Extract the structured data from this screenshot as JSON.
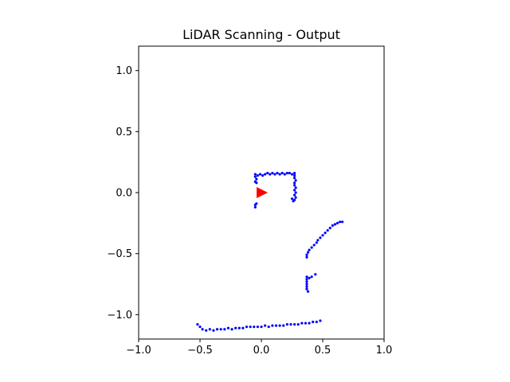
{
  "chart_data": {
    "type": "scatter",
    "title": "LiDAR Scanning - Output",
    "xlabel": "",
    "ylabel": "",
    "xlim": [
      -1.0,
      1.0
    ],
    "ylim": [
      -1.2,
      1.2
    ],
    "aspect": "equal",
    "grid": false,
    "x_ticks": [
      -1.0,
      -0.5,
      0.0,
      0.5,
      1.0
    ],
    "x_tick_labels": [
      "−1.0",
      "−0.5",
      "0.0",
      "0.5",
      "1.0"
    ],
    "y_ticks": [
      1.0,
      0.5,
      0.0,
      -0.5,
      -1.0
    ],
    "y_tick_labels": [
      "1.0",
      "0.5",
      "0.0",
      "−0.5",
      "−1.0"
    ],
    "colors": {
      "points": "#0000ff",
      "marker": "#ff0000"
    },
    "marker": {
      "x": 0.0,
      "y": 0.0,
      "shape": "triangle-right"
    },
    "series": [
      {
        "points": [
          [
            -0.05,
            0.15
          ],
          [
            -0.03,
            0.14
          ],
          [
            -0.01,
            0.15
          ],
          [
            0.01,
            0.14
          ],
          [
            0.03,
            0.15
          ],
          [
            0.05,
            0.16
          ],
          [
            0.07,
            0.15
          ],
          [
            0.09,
            0.16
          ],
          [
            0.11,
            0.15
          ],
          [
            0.13,
            0.16
          ],
          [
            0.15,
            0.15
          ],
          [
            0.17,
            0.16
          ],
          [
            0.19,
            0.15
          ],
          [
            0.21,
            0.16
          ],
          [
            0.23,
            0.16
          ],
          [
            0.25,
            0.15
          ],
          [
            0.27,
            0.16
          ],
          [
            -0.05,
            0.13
          ],
          [
            -0.04,
            0.11
          ],
          [
            -0.05,
            0.09
          ],
          [
            -0.04,
            0.08
          ],
          [
            0.27,
            0.14
          ],
          [
            0.27,
            0.12
          ],
          [
            0.28,
            0.1
          ],
          [
            0.27,
            0.08
          ],
          [
            0.27,
            0.06
          ],
          [
            0.28,
            0.04
          ],
          [
            0.27,
            0.02
          ],
          [
            0.28,
            0.0
          ],
          [
            0.27,
            -0.02
          ],
          [
            0.28,
            -0.04
          ],
          [
            0.27,
            -0.06
          ],
          [
            0.26,
            -0.07
          ],
          [
            0.25,
            -0.05
          ],
          [
            -0.05,
            -0.1
          ],
          [
            -0.04,
            -0.09
          ],
          [
            -0.05,
            -0.12
          ],
          [
            0.66,
            -0.24
          ],
          [
            0.64,
            -0.24
          ],
          [
            0.62,
            -0.25
          ],
          [
            0.6,
            -0.26
          ],
          [
            0.58,
            -0.27
          ],
          [
            0.56,
            -0.29
          ],
          [
            0.54,
            -0.31
          ],
          [
            0.52,
            -0.33
          ],
          [
            0.5,
            -0.35
          ],
          [
            0.48,
            -0.37
          ],
          [
            0.46,
            -0.39
          ],
          [
            0.45,
            -0.41
          ],
          [
            0.43,
            -0.43
          ],
          [
            0.41,
            -0.45
          ],
          [
            0.39,
            -0.47
          ],
          [
            0.38,
            -0.49
          ],
          [
            0.37,
            -0.51
          ],
          [
            0.37,
            -0.53
          ],
          [
            0.37,
            -0.69
          ],
          [
            0.37,
            -0.71
          ],
          [
            0.37,
            -0.73
          ],
          [
            0.37,
            -0.75
          ],
          [
            0.37,
            -0.77
          ],
          [
            0.37,
            -0.79
          ],
          [
            0.38,
            -0.81
          ],
          [
            0.39,
            -0.7
          ],
          [
            0.41,
            -0.69
          ],
          [
            0.44,
            -0.67
          ],
          [
            -0.52,
            -1.08
          ],
          [
            -0.5,
            -1.1
          ],
          [
            -0.48,
            -1.12
          ],
          [
            -0.45,
            -1.13
          ],
          [
            -0.42,
            -1.12
          ],
          [
            -0.39,
            -1.13
          ],
          [
            -0.36,
            -1.12
          ],
          [
            -0.33,
            -1.12
          ],
          [
            -0.3,
            -1.12
          ],
          [
            -0.27,
            -1.11
          ],
          [
            -0.24,
            -1.12
          ],
          [
            -0.21,
            -1.11
          ],
          [
            -0.18,
            -1.11
          ],
          [
            -0.15,
            -1.11
          ],
          [
            -0.12,
            -1.1
          ],
          [
            -0.09,
            -1.1
          ],
          [
            -0.06,
            -1.1
          ],
          [
            -0.03,
            -1.1
          ],
          [
            0.0,
            -1.1
          ],
          [
            0.03,
            -1.09
          ],
          [
            0.06,
            -1.1
          ],
          [
            0.09,
            -1.09
          ],
          [
            0.12,
            -1.09
          ],
          [
            0.15,
            -1.09
          ],
          [
            0.18,
            -1.09
          ],
          [
            0.21,
            -1.08
          ],
          [
            0.24,
            -1.08
          ],
          [
            0.27,
            -1.08
          ],
          [
            0.3,
            -1.08
          ],
          [
            0.33,
            -1.07
          ],
          [
            0.36,
            -1.07
          ],
          [
            0.39,
            -1.07
          ],
          [
            0.42,
            -1.06
          ],
          [
            0.45,
            -1.06
          ],
          [
            0.48,
            -1.05
          ]
        ]
      }
    ]
  }
}
